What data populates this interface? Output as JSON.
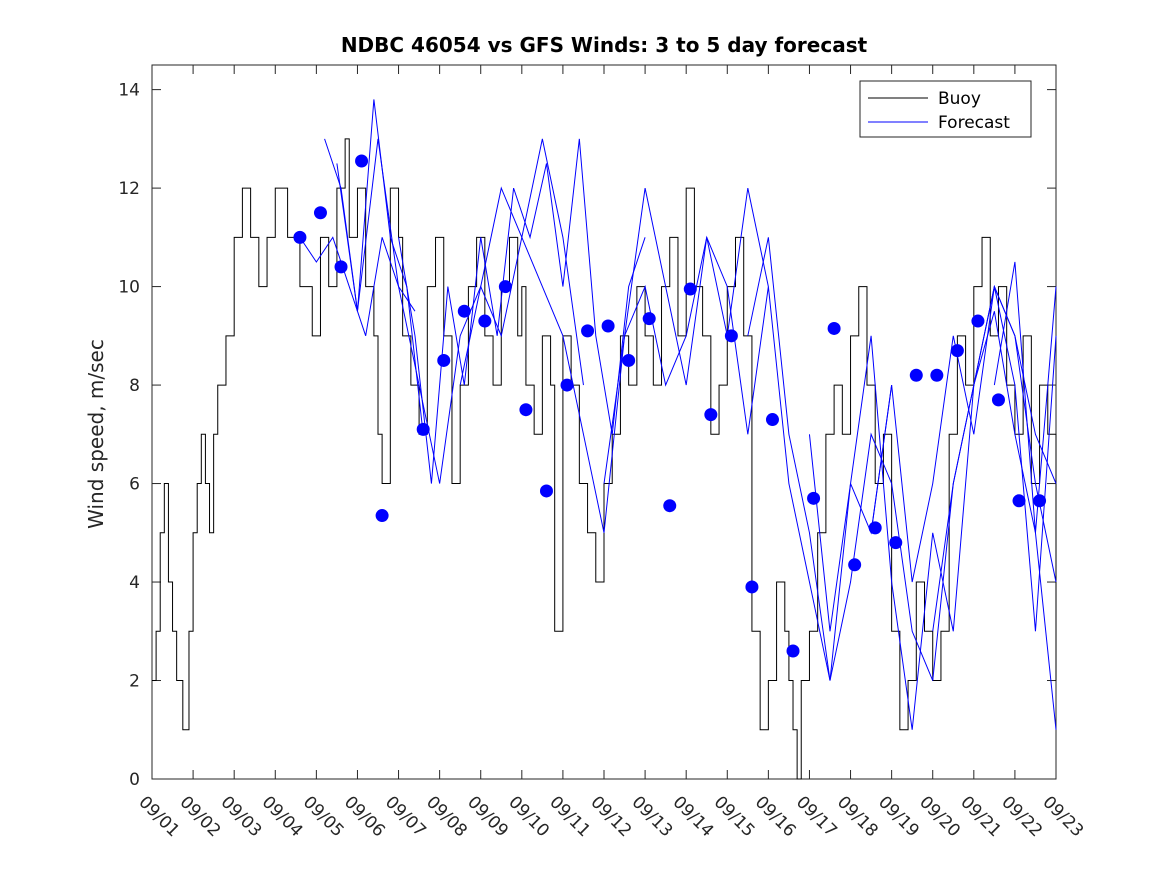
{
  "chart_data": {
    "type": "line",
    "title": "NDBC 46054 vs GFS Winds: 3 to 5 day forecast",
    "xlabel": "",
    "ylabel": "Wind speed, m/sec",
    "xlim": [
      0,
      22
    ],
    "ylim": [
      0,
      14.5
    ],
    "x_tick_labels": [
      "09/01",
      "09/02",
      "09/03",
      "09/04",
      "09/05",
      "09/06",
      "09/07",
      "09/08",
      "09/09",
      "09/10",
      "09/11",
      "09/12",
      "09/13",
      "09/14",
      "09/15",
      "09/16",
      "09/17",
      "09/18",
      "09/19",
      "09/20",
      "09/21",
      "09/22",
      "09/23"
    ],
    "y_ticks": [
      0,
      2,
      4,
      6,
      8,
      10,
      12,
      14
    ],
    "legend": {
      "position": "top-right",
      "entries": [
        "Buoy",
        "Forecast"
      ]
    },
    "colors": {
      "buoy": "#000000",
      "forecast": "#0000ff",
      "markers": "#0000ff"
    },
    "series": [
      {
        "name": "Buoy",
        "x": [
          0.0,
          0.1,
          0.2,
          0.3,
          0.4,
          0.5,
          0.6,
          0.75,
          0.9,
          1.0,
          1.1,
          1.2,
          1.3,
          1.4,
          1.5,
          1.6,
          1.8,
          2.0,
          2.2,
          2.4,
          2.6,
          2.8,
          3.0,
          3.3,
          3.6,
          3.9,
          4.1,
          4.3,
          4.5,
          4.7,
          4.8,
          5.0,
          5.2,
          5.4,
          5.5,
          5.6,
          5.8,
          6.0,
          6.1,
          6.3,
          6.5,
          6.7,
          6.9,
          7.1,
          7.3,
          7.5,
          7.7,
          7.9,
          8.1,
          8.3,
          8.5,
          8.7,
          8.9,
          9.0,
          9.1,
          9.3,
          9.5,
          9.7,
          9.8,
          10.0,
          10.2,
          10.4,
          10.6,
          10.8,
          11.0,
          11.2,
          11.4,
          11.6,
          11.8,
          12.0,
          12.2,
          12.4,
          12.6,
          12.8,
          13.0,
          13.2,
          13.4,
          13.6,
          13.8,
          14.0,
          14.2,
          14.4,
          14.6,
          14.8,
          15.0,
          15.2,
          15.4,
          15.5,
          15.6,
          15.7,
          15.8,
          16.0,
          16.2,
          16.4,
          16.6,
          16.8,
          17.0,
          17.2,
          17.4,
          17.6,
          17.8,
          18.0,
          18.2,
          18.4,
          18.6,
          18.8,
          19.0,
          19.2,
          19.4,
          19.6,
          19.8,
          20.0,
          20.2,
          20.4,
          20.6,
          20.8,
          21.0,
          21.2,
          21.4,
          21.6,
          21.8,
          22.0
        ],
        "values": [
          2,
          3,
          5,
          6,
          4,
          3,
          2,
          1,
          3,
          5,
          6,
          7,
          6,
          5,
          7,
          8,
          9,
          11,
          12,
          11,
          10,
          11,
          12,
          11,
          10,
          9,
          11,
          10,
          12,
          13,
          11,
          12,
          10,
          9,
          7,
          6,
          12,
          11,
          9,
          8,
          7,
          10,
          11,
          9,
          6,
          8,
          10,
          11,
          9,
          8,
          10,
          11,
          9,
          10,
          8,
          7,
          9,
          8,
          3,
          9,
          8,
          6,
          5,
          4,
          6,
          7,
          9,
          8,
          10,
          9,
          8,
          10,
          11,
          9,
          12,
          10,
          9,
          7,
          8,
          10,
          11,
          9,
          3,
          1,
          2,
          4,
          3,
          2,
          1,
          0,
          2,
          3,
          5,
          7,
          8,
          7,
          9,
          10,
          8,
          6,
          7,
          3,
          1,
          2,
          4,
          3,
          2,
          3,
          7,
          9,
          8,
          10,
          11,
          9,
          10,
          8,
          7,
          9,
          6,
          8,
          7,
          2
        ]
      },
      {
        "name": "Forecast",
        "segments": [
          {
            "x": [
              3.6,
              4.0,
              4.4,
              4.8,
              5.2,
              5.6,
              6.0,
              6.4
            ],
            "values": [
              11,
              10.5,
              11,
              10,
              9,
              11,
              10,
              9.5
            ]
          },
          {
            "x": [
              4.2,
              4.6,
              5.0,
              5.4,
              5.8,
              6.2,
              6.6
            ],
            "values": [
              13,
              12,
              9.5,
              13.8,
              11,
              10,
              7
            ]
          },
          {
            "x": [
              4.5,
              5.0,
              5.5,
              6.0,
              6.5,
              7.0,
              7.5,
              8.0,
              8.5,
              9.0,
              9.5,
              10.0,
              10.5
            ],
            "values": [
              12.5,
              9.5,
              13,
              10,
              8,
              6,
              9,
              10,
              12,
              11,
              13,
              11,
              8
            ]
          },
          {
            "x": [
              6.0,
              6.4,
              6.8,
              7.2,
              7.6,
              8.0,
              8.4,
              8.8,
              9.2,
              9.6,
              10.0,
              10.4,
              10.8,
              11.2,
              11.6,
              12.0
            ],
            "values": [
              11,
              9,
              6,
              10,
              8,
              11,
              9,
              12,
              11,
              12.5,
              10,
              13,
              9,
              7,
              10,
              11
            ]
          },
          {
            "x": [
              7.5,
              8.0,
              8.5,
              9.0,
              9.5,
              10.0,
              10.5,
              11.0,
              11.5,
              12.0,
              12.5,
              13.0,
              13.5,
              14.0,
              14.5,
              15.0
            ],
            "values": [
              8,
              10,
              9,
              11,
              10,
              9,
              7,
              5,
              9,
              12,
              10,
              8,
              11,
              9,
              12,
              10
            ]
          },
          {
            "x": [
              11.0,
              11.5,
              12.0,
              12.5,
              13.0,
              13.5,
              14.0,
              14.5,
              15.0,
              15.5,
              16.0,
              16.5,
              17.0,
              17.5,
              18.0
            ],
            "values": [
              6,
              9,
              10,
              8,
              9,
              11,
              10,
              7,
              10,
              6,
              4,
              2,
              6,
              5,
              8
            ]
          },
          {
            "x": [
              14.5,
              15.0,
              15.5,
              16.0,
              16.5,
              17.0,
              17.5,
              18.0,
              18.5,
              19.0,
              19.5,
              20.0,
              20.5,
              21.0,
              21.5,
              22.0
            ],
            "values": [
              9,
              11,
              7,
              5,
              2,
              4,
              7,
              6,
              3,
              2,
              6,
              8,
              10,
              9,
              7,
              6
            ]
          },
          {
            "x": [
              16.0,
              16.5,
              17.0,
              17.5,
              18.0,
              18.5,
              19.0,
              19.5,
              20.0,
              20.5,
              21.0,
              21.5,
              22.0
            ],
            "values": [
              7,
              3,
              6,
              9,
              4,
              1,
              5,
              3,
              8,
              10,
              9,
              6,
              4
            ]
          },
          {
            "x": [
              17.5,
              18.0,
              18.5,
              19.0,
              19.5,
              20.0,
              20.5,
              21.0,
              21.5,
              22.0
            ],
            "values": [
              5,
              8,
              4,
              6,
              9,
              7,
              10,
              8,
              3,
              9
            ]
          },
          {
            "x": [
              19.0,
              19.5,
              20.0,
              20.5,
              21.0,
              21.5,
              22.0
            ],
            "values": [
              3,
              6,
              8,
              9.5,
              7,
              5,
              1
            ]
          },
          {
            "x": [
              20.5,
              21.0,
              21.5,
              22.0
            ],
            "values": [
              8,
              10.5,
              5,
              10
            ]
          }
        ]
      },
      {
        "name": "Forecast markers",
        "x": [
          3.6,
          4.1,
          4.6,
          5.1,
          5.6,
          6.6,
          7.1,
          7.6,
          8.1,
          8.6,
          9.1,
          9.6,
          10.1,
          10.6,
          11.1,
          11.6,
          12.1,
          12.6,
          13.1,
          13.6,
          14.1,
          14.6,
          15.1,
          15.6,
          16.1,
          16.6,
          17.1,
          17.6,
          18.1,
          18.6,
          19.1,
          19.6,
          20.1,
          20.6,
          21.1,
          21.6
        ],
        "values": [
          11,
          11.5,
          10.4,
          12.55,
          5.35,
          7.1,
          8.5,
          9.5,
          9.3,
          10,
          7.5,
          5.85,
          8,
          9.1,
          9.2,
          8.5,
          9.35,
          5.55,
          9.95,
          7.4,
          9,
          3.9,
          7.3,
          2.6,
          5.7,
          9.15,
          4.35,
          5.1,
          4.8,
          8.2,
          8.2,
          8.7,
          9.3,
          7.7,
          5.65,
          5.65
        ]
      }
    ]
  }
}
